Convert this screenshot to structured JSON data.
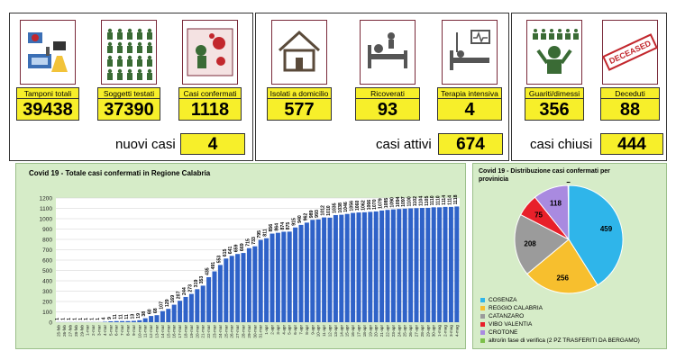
{
  "top": {
    "tiles": [
      {
        "label": "Tamponi totali",
        "value": "39438",
        "icon": "lab-icon"
      },
      {
        "label": "Soggetti testati",
        "value": "37390",
        "icon": "people-icon"
      },
      {
        "label": "Casi confermati",
        "value": "1118",
        "icon": "virus-icon"
      },
      {
        "label": "Isolati a domicilio",
        "value": "577",
        "icon": "house-icon"
      },
      {
        "label": "Ricoverati",
        "value": "93",
        "icon": "hospital-bed-icon"
      },
      {
        "label": "Terapia intensiva",
        "value": "4",
        "icon": "icu-icon"
      },
      {
        "label": "Guariti/dimessi",
        "value": "356",
        "icon": "recovered-icon"
      },
      {
        "label": "Deceduti",
        "value": "88",
        "icon": "deceased-stamp-icon"
      }
    ],
    "stamp_text": "DECEASED",
    "nuovi_label": "nuovi casi",
    "nuovi_value": "4",
    "attivi_label": "casi attivi",
    "attivi_value": "674",
    "chiusi_label": "casi chiusi",
    "chiusi_value": "444"
  },
  "colors": {
    "yellow": "#f7ef2a",
    "bar": "#2f62c8",
    "panel": "#d6ecc8"
  },
  "chart_data": [
    {
      "type": "bar",
      "title": "Covid 19 - Totale casi confermati in Regione Calabria",
      "ylim": [
        0,
        1200
      ],
      "yticks": [
        0,
        100,
        200,
        300,
        400,
        500,
        600,
        700,
        800,
        900,
        1000,
        1100,
        1200
      ],
      "grid": true,
      "categories": [
        "25-feb",
        "26-feb",
        "27-feb",
        "28-feb",
        "29-feb",
        "1-mar",
        "2-mar",
        "3-mar",
        "4-mar",
        "5-mar",
        "6-mar",
        "7-mar",
        "8-mar",
        "9-mar",
        "10-mar",
        "11-mar",
        "12-mar",
        "13-mar",
        "14-mar",
        "15-mar",
        "16-mar",
        "17-mar",
        "18-mar",
        "19-mar",
        "20-mar",
        "21-mar",
        "22-mar",
        "23-mar",
        "24-mar",
        "25-mar",
        "26-mar",
        "27-mar",
        "28-mar",
        "29-mar",
        "30-mar",
        "31-mar",
        "1-apr",
        "2-apr",
        "3-apr",
        "4-apr",
        "5-apr",
        "6-apr",
        "7-apr",
        "8-apr",
        "9-apr",
        "10-apr",
        "11-apr",
        "12-apr",
        "13-apr",
        "14-apr",
        "15-apr",
        "16-apr",
        "17-apr",
        "18-apr",
        "19-apr",
        "20-apr",
        "21-apr",
        "22-apr",
        "23-apr",
        "24-apr",
        "25-apr",
        "26-apr",
        "27-apr",
        "28-apr",
        "29-apr",
        "30-apr",
        "1-mag",
        "2-mag",
        "3-mag",
        "4-mag"
      ],
      "values": [
        1,
        1,
        1,
        1,
        1,
        1,
        1,
        1,
        4,
        9,
        11,
        11,
        11,
        13,
        19,
        38,
        60,
        68,
        107,
        129,
        169,
        207,
        244,
        273,
        319,
        353,
        435,
        491,
        553,
        615,
        641,
        659,
        669,
        715,
        733,
        795,
        811,
        856,
        864,
        874,
        875,
        915,
        940,
        962,
        989,
        993,
        1012,
        1010,
        1035,
        1038,
        1046,
        1056,
        1060,
        1062,
        1066,
        1070,
        1079,
        1085,
        1090,
        1094,
        1097,
        1100,
        1102,
        1104,
        1105,
        1110,
        1110,
        1114,
        1114,
        1118
      ]
    },
    {
      "type": "pie",
      "title": "Covid 19 - Distribuzione casi confermati per provinicia",
      "slices": [
        {
          "name": "COSENZA",
          "value": 459,
          "color": "#2fb5ea"
        },
        {
          "name": "REGGIO CALABRIA",
          "value": 256,
          "color": "#f7bf2e"
        },
        {
          "name": "CATANZARO",
          "value": 208,
          "color": "#9b9b9b"
        },
        {
          "name": "VIBO VALENTIA",
          "value": 75,
          "color": "#e8202a"
        },
        {
          "name": "CROTONE",
          "value": 118,
          "color": "#a98ae0"
        },
        {
          "name": "altro/in fase di verifica (2 PZ TRASFERITI DA BERGAMO)",
          "value": 2,
          "color": "#7cc04a"
        }
      ]
    }
  ]
}
